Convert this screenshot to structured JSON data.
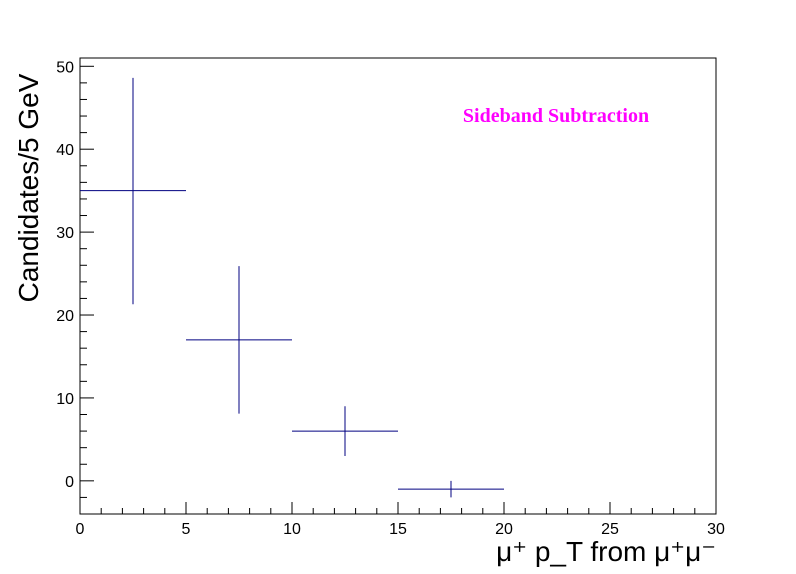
{
  "chart_data": {
    "type": "scatter",
    "title": "",
    "xlabel": "μ⁺ p_T from μ⁺μ⁻",
    "ylabel": "Candidates/5 GeV",
    "xlim": [
      0,
      30
    ],
    "ylim": [
      -4,
      51
    ],
    "x_ticks": [
      0,
      5,
      10,
      15,
      20,
      25,
      30
    ],
    "y_ticks": [
      0,
      10,
      20,
      30,
      40,
      50
    ],
    "grid": false,
    "legend": "none",
    "series": [
      {
        "color": "#000080",
        "points": [
          {
            "x": 2.5,
            "xerr": 2.5,
            "y": 35,
            "yerr_low": 13.7,
            "yerr_high": 13.6
          },
          {
            "x": 7.5,
            "xerr": 2.5,
            "y": 17,
            "yerr_low": 8.9,
            "yerr_high": 8.9
          },
          {
            "x": 12.5,
            "xerr": 2.5,
            "y": 6,
            "yerr_low": 3.0,
            "yerr_high": 3.0
          },
          {
            "x": 17.5,
            "xerr": 2.5,
            "y": -1,
            "yerr_low": 1.0,
            "yerr_high": 1.0
          }
        ]
      }
    ],
    "annotations": [
      {
        "text": "Sideband Subtraction",
        "color": "#ff00ff"
      }
    ]
  }
}
